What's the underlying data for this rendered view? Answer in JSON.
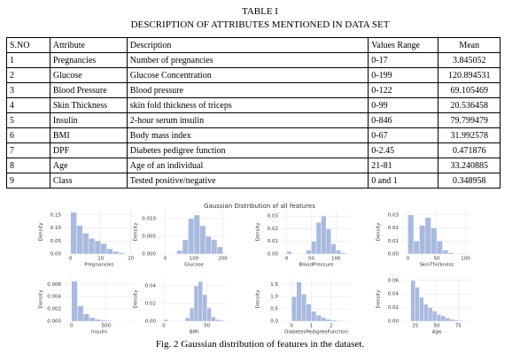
{
  "table": {
    "title": "TABLE I",
    "subtitle": "DESCRIPTION OF ATTRIBUTES MENTIONED IN DATA SET",
    "headers": [
      "S.NO",
      "Attribute",
      "Description",
      "Values Range",
      "Mean"
    ],
    "rows": [
      [
        "1",
        "Pregnancies",
        "Number of pregnancies",
        "0-17",
        "3.845052"
      ],
      [
        "2",
        "Glucose",
        "Glucose Concentration",
        "0-199",
        "120.894531"
      ],
      [
        "3",
        "Blood Pressure",
        "Blood pressure",
        "0-122",
        "69.105469"
      ],
      [
        "4",
        "Skin Thickness",
        "skin fold thickness of triceps",
        "0-99",
        "20.536458"
      ],
      [
        "5",
        "Insulin",
        "2-hour serum insulin",
        "0-846",
        "79.799479"
      ],
      [
        "6",
        "BMI",
        "Body mass index",
        "0-67",
        "31.992578"
      ],
      [
        "7",
        "DPF",
        "Diabetes pedigree function",
        "0-2.45",
        "0.471876"
      ],
      [
        "8",
        "Age",
        "Age of an individual",
        "21-81",
        "33.240885"
      ],
      [
        "9",
        "Class",
        "Tested positive/negative",
        "0 and 1",
        "0.348958"
      ]
    ]
  },
  "figure": {
    "title": "Gaussian Distribution of all features",
    "caption": "Fig. 2 Gaussian distribution of features in the dataset."
  },
  "chart_data": [
    {
      "type": "histogram",
      "xlabel": "Pregnancies",
      "ylabel": "Density",
      "color": "#8da3d3",
      "bins": [
        0,
        2,
        4,
        6,
        8,
        10,
        12,
        14,
        16,
        18
      ],
      "counts": [
        0.16,
        0.11,
        0.08,
        0.06,
        0.05,
        0.04,
        0.02,
        0.01,
        0.005
      ],
      "xlim": [
        -2,
        21
      ],
      "ylim": [
        0,
        0.17
      ],
      "xticks": [
        0,
        10,
        20
      ],
      "yticks": [
        {
          "value": 0,
          "label": "0.00"
        },
        0.05,
        {
          "value": 0.1,
          "label": "0.10"
        },
        0.15
      ]
    },
    {
      "type": "histogram",
      "xlabel": "Glucose",
      "ylabel": "Density",
      "color": "#8da3d3",
      "bins": [
        40,
        60,
        80,
        100,
        120,
        140,
        160,
        180,
        200
      ],
      "counts": [
        0.001,
        0.004,
        0.01,
        0.011,
        0.008,
        0.005,
        0.004,
        0.002
      ],
      "xlim": [
        -20,
        220
      ],
      "ylim": [
        0,
        0.0125
      ],
      "xticks": [
        0,
        100,
        200
      ],
      "yticks": [
        {
          "value": 0,
          "label": "0.000"
        },
        0.005,
        {
          "value": 0.01,
          "label": "0.010"
        }
      ]
    },
    {
      "type": "histogram",
      "xlabel": "BloodPressure",
      "ylabel": "Density",
      "color": "#8da3d3",
      "bins": [
        0,
        10,
        20,
        30,
        40,
        50,
        60,
        70,
        80,
        90,
        100,
        110,
        120
      ],
      "counts": [
        0.002,
        0,
        0,
        0,
        0.003,
        0.01,
        0.025,
        0.03,
        0.02,
        0.008,
        0.003,
        0.001
      ],
      "xlim": [
        -10,
        130
      ],
      "ylim": [
        0,
        0.035
      ],
      "xticks": [
        0,
        50,
        100
      ],
      "yticks": [
        {
          "value": 0,
          "label": "0.00"
        },
        0.01,
        0.02,
        0.03
      ]
    },
    {
      "type": "histogram",
      "xlabel": "SkinThickness",
      "ylabel": "Density",
      "color": "#8da3d3",
      "bins": [
        0,
        10,
        20,
        30,
        40,
        50,
        60,
        70,
        80,
        90,
        100
      ],
      "counts": [
        0.03,
        0.01,
        0.022,
        0.028,
        0.02,
        0.01,
        0.003,
        0.001,
        0,
        0.0005
      ],
      "xlim": [
        -10,
        110
      ],
      "ylim": [
        0,
        0.034
      ],
      "xticks": [
        0,
        50,
        100
      ],
      "yticks": [
        {
          "value": 0,
          "label": "0.00"
        },
        0.01,
        0.02,
        0.03
      ]
    },
    {
      "type": "histogram",
      "xlabel": "Insulin",
      "ylabel": "Density",
      "color": "#8da3d3",
      "bins": [
        0,
        85,
        170,
        255,
        340,
        425,
        510,
        595,
        680,
        765,
        850
      ],
      "counts": [
        0.0065,
        0.0025,
        0.0012,
        0.0006,
        0.0003,
        0.0002,
        0.0001,
        5e-05,
        3e-05,
        2e-05
      ],
      "xlim": [
        -100,
        900
      ],
      "ylim": [
        0,
        0.0072
      ],
      "xticks": [
        0,
        500
      ],
      "yticks": [
        {
          "value": 0,
          "label": "0.000"
        },
        0.002,
        0.004,
        0.006
      ]
    },
    {
      "type": "histogram",
      "xlabel": "BMI",
      "ylabel": "Density",
      "color": "#8da3d3",
      "bins": [
        0,
        5,
        10,
        15,
        20,
        25,
        30,
        35,
        40,
        45,
        50,
        55,
        60,
        65,
        70
      ],
      "counts": [
        0.002,
        0,
        0,
        0,
        0,
        0.004,
        0.015,
        0.04,
        0.045,
        0.03,
        0.015,
        0.005,
        0.002,
        0.001
      ],
      "xlim": [
        -5,
        75
      ],
      "ylim": [
        0,
        0.05
      ],
      "xticks": [
        0,
        50
      ],
      "yticks": [
        {
          "value": 0,
          "label": "0.00"
        },
        0.02,
        0.04
      ]
    },
    {
      "type": "histogram",
      "xlabel": "DiabetesPedigreeFunction",
      "ylabel": "Density",
      "color": "#8da3d3",
      "bins": [
        0,
        0.25,
        0.5,
        0.75,
        1,
        1.25,
        1.5,
        1.75,
        2,
        2.25,
        2.5
      ],
      "counts": [
        1,
        1.6,
        1.1,
        0.7,
        0.4,
        0.25,
        0.15,
        0.08,
        0.05,
        0.03
      ],
      "xlim": [
        -0.5,
        3
      ],
      "ylim": [
        0,
        1.8
      ],
      "xticks": [
        0,
        1,
        2
      ],
      "yticks": [
        {
          "value": 0,
          "label": "0.0"
        },
        0.5,
        {
          "value": 1,
          "label": "1.0"
        },
        1.5
      ]
    },
    {
      "type": "histogram",
      "xlabel": "Age",
      "ylabel": "Density",
      "color": "#8da3d3",
      "bins": [
        20,
        25,
        30,
        35,
        40,
        45,
        50,
        55,
        60,
        65,
        70,
        75,
        80,
        85
      ],
      "counts": [
        0.06,
        0.05,
        0.035,
        0.025,
        0.02,
        0.015,
        0.01,
        0.008,
        0.005,
        0.003,
        0.002,
        0.001,
        0.0005
      ],
      "xlim": [
        10,
        90
      ],
      "ylim": [
        0,
        0.065
      ],
      "xticks": [
        25,
        50,
        75
      ],
      "yticks": [
        {
          "value": 0,
          "label": "0.00"
        },
        0.02,
        0.04,
        0.06
      ]
    }
  ]
}
